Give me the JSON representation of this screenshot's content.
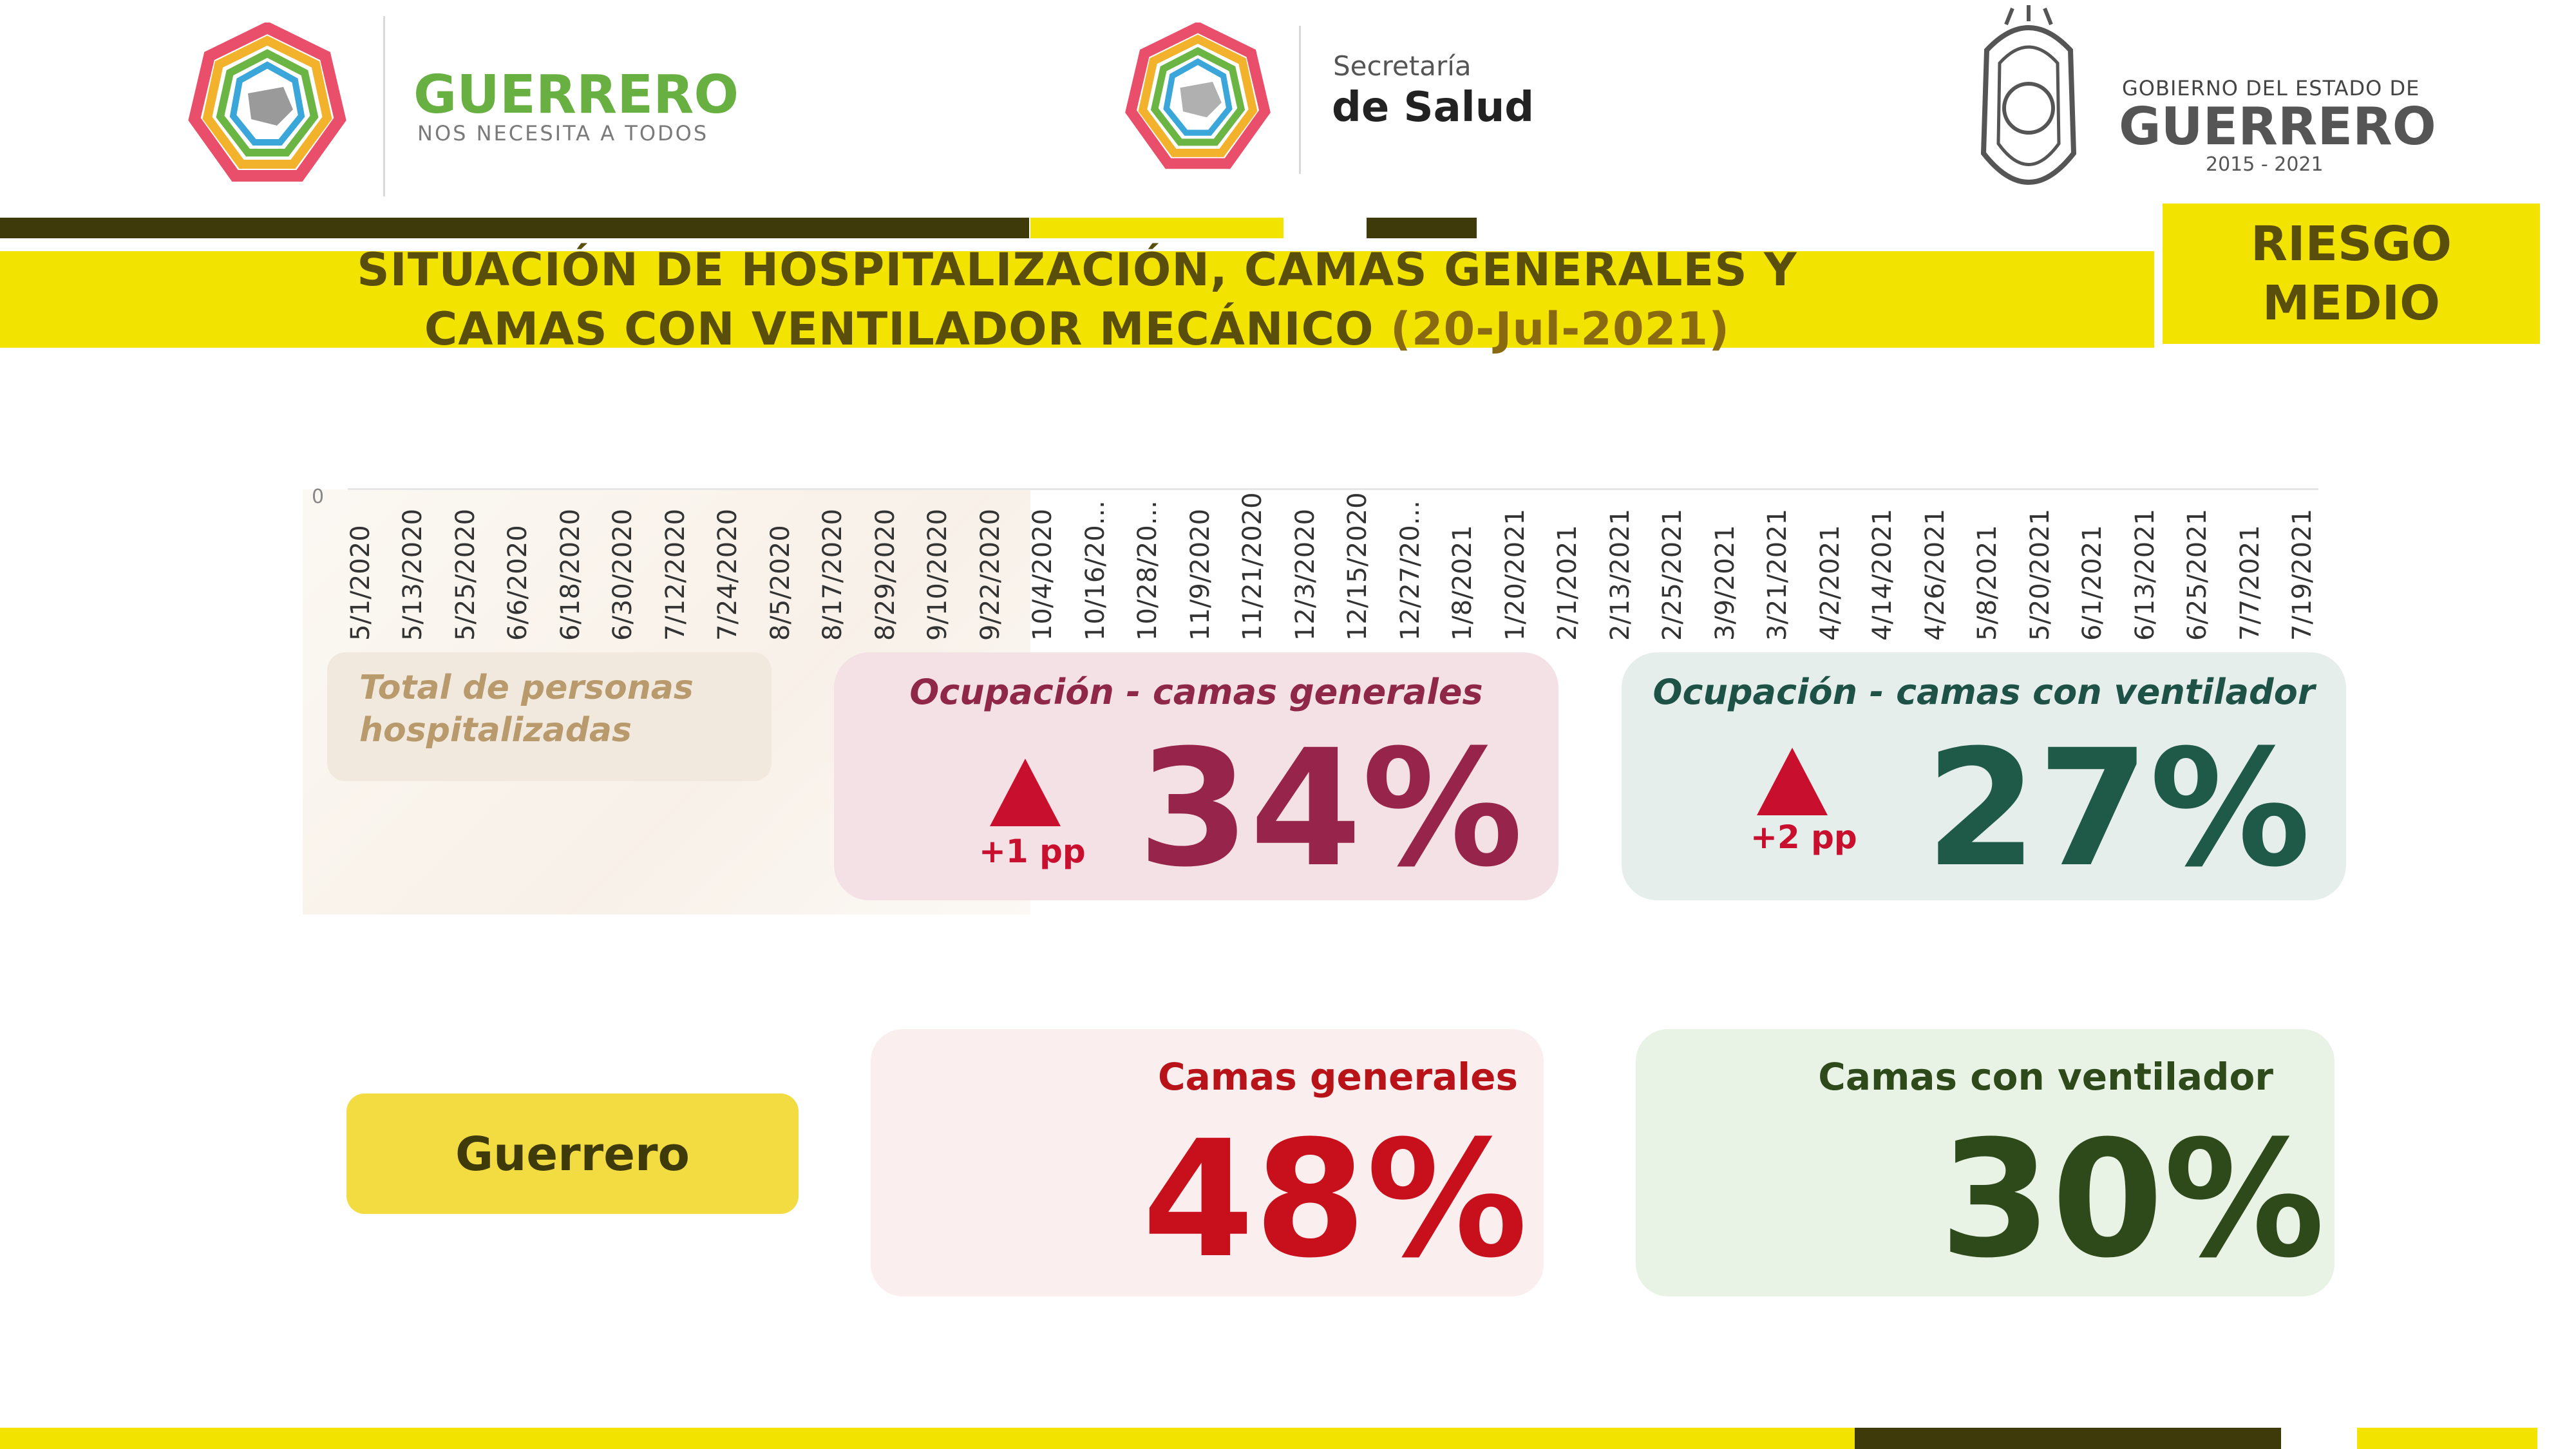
{
  "header": {
    "left_brand": {
      "name": "GUERRERO",
      "tagline": "NOS NECESITA A TODOS"
    },
    "center_brand": {
      "line1": "Secretaría",
      "line2": "de Salud"
    },
    "right_brand": {
      "line1": "GOBIERNO DEL ESTADO DE",
      "line2": "GUERRERO",
      "years": "2015 - 2021"
    }
  },
  "title": {
    "line1": "SITUACIÓN DE HOSPITALIZACIÓN, CAMAS GENERALES Y",
    "line2_main": "CAMAS CON VENTILADOR MECÁNICO",
    "line2_date": "(20-Jul-2021)"
  },
  "risk": {
    "line1": "RIESGO",
    "line2": "MEDIO"
  },
  "chart_data": {
    "type": "line",
    "title": "Total de personas hospitalizadas",
    "y_tick_labels": [
      "0"
    ],
    "x": [
      "5/1/2020",
      "5/13/2020",
      "5/25/2020",
      "6/6/2020",
      "6/18/2020",
      "6/30/2020",
      "7/12/2020",
      "7/24/2020",
      "8/5/2020",
      "8/17/2020",
      "8/29/2020",
      "9/10/2020",
      "9/22/2020",
      "10/4/2020",
      "10/16/20...",
      "10/28/20...",
      "11/9/2020",
      "11/21/2020",
      "12/3/2020",
      "12/15/2020",
      "12/27/20...",
      "1/8/2021",
      "1/20/2021",
      "2/1/2021",
      "2/13/2021",
      "2/25/2021",
      "3/9/2021",
      "3/21/2021",
      "4/2/2021",
      "4/14/2021",
      "4/26/2021",
      "5/8/2021",
      "5/20/2021",
      "6/1/2021",
      "6/13/2021",
      "6/25/2021",
      "7/7/2021",
      "7/19/2021"
    ],
    "series": []
  },
  "occupancy": {
    "general": {
      "title": "Ocupación - camas generales",
      "value": "34%",
      "change": "+1 pp"
    },
    "ventilator": {
      "title": "Ocupación - camas con ventilador",
      "value": "27%",
      "change": "+2 pp"
    }
  },
  "state": {
    "name": "Guerrero",
    "general": {
      "title": "Camas generales",
      "value": "48%"
    },
    "ventilator": {
      "title": "Camas con ventilador",
      "value": "30%"
    }
  },
  "colors": {
    "yellow": "#f2e300",
    "olive": "#3e3a0a",
    "general_accent": "#97244a",
    "ventilator_accent": "#1f5a48",
    "change_arrow": "#c8102e"
  }
}
